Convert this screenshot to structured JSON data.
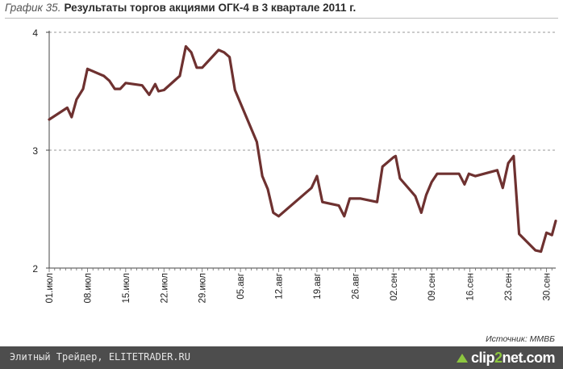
{
  "header": {
    "title_prefix": "График 35.",
    "title": "Результаты торгов акциями ОГК-4 в 3 квартале 2011 г."
  },
  "chart_data": {
    "type": "line",
    "title": "Результаты торгов акциями ОГК-4 в 3 квартале 2011 г.",
    "xlabel": "",
    "ylabel": "",
    "ylim": [
      2,
      4
    ],
    "yticks": [
      "2",
      "3",
      "4"
    ],
    "x_tick_labels": [
      "01.июл",
      "08.июл",
      "15.июл",
      "22.июл",
      "29.июл",
      "05.авг",
      "12.авг",
      "19.авг",
      "26.авг",
      "02.сен",
      "09.сен",
      "16.сен",
      "23.сен",
      "30.сен"
    ],
    "grid": "horizontal dashed",
    "line_color": "#6e3130",
    "series": [
      {
        "values": [
          [
            0.0,
            3.26
          ],
          [
            3.3,
            3.36
          ],
          [
            4.1,
            3.28
          ],
          [
            5.0,
            3.43
          ],
          [
            6.2,
            3.52
          ],
          [
            7.0,
            3.69
          ],
          [
            10.0,
            3.63
          ],
          [
            11.0,
            3.59
          ],
          [
            12.0,
            3.52
          ],
          [
            13.0,
            3.52
          ],
          [
            14.0,
            3.57
          ],
          [
            17.0,
            3.55
          ],
          [
            18.3,
            3.47
          ],
          [
            19.4,
            3.56
          ],
          [
            20.0,
            3.5
          ],
          [
            21.0,
            3.51
          ],
          [
            23.9,
            3.63
          ],
          [
            25.0,
            3.88
          ],
          [
            26.0,
            3.83
          ],
          [
            27.0,
            3.7
          ],
          [
            28.0,
            3.7
          ],
          [
            31.0,
            3.85
          ],
          [
            32.0,
            3.83
          ],
          [
            33.0,
            3.79
          ],
          [
            34.0,
            3.51
          ],
          [
            38.0,
            3.07
          ],
          [
            39.0,
            2.78
          ],
          [
            40.0,
            2.67
          ],
          [
            41.0,
            2.47
          ],
          [
            42.0,
            2.44
          ],
          [
            46.0,
            2.6
          ],
          [
            48.0,
            2.68
          ],
          [
            49.0,
            2.78
          ],
          [
            50.0,
            2.56
          ],
          [
            53.0,
            2.53
          ],
          [
            54.0,
            2.44
          ],
          [
            55.0,
            2.59
          ],
          [
            57.0,
            2.59
          ],
          [
            60.0,
            2.56
          ],
          [
            61.0,
            2.86
          ],
          [
            63.0,
            2.94
          ],
          [
            63.4,
            2.95
          ],
          [
            64.2,
            2.76
          ],
          [
            67.0,
            2.61
          ],
          [
            68.1,
            2.47
          ],
          [
            69.0,
            2.62
          ],
          [
            70.0,
            2.73
          ],
          [
            71.0,
            2.8
          ],
          [
            75.0,
            2.8
          ],
          [
            76.0,
            2.71
          ],
          [
            76.8,
            2.8
          ],
          [
            78.0,
            2.78
          ],
          [
            82.0,
            2.83
          ],
          [
            83.0,
            2.68
          ],
          [
            84.0,
            2.89
          ],
          [
            85.0,
            2.95
          ],
          [
            86.0,
            2.29
          ],
          [
            89.0,
            2.15
          ],
          [
            90.0,
            2.14
          ],
          [
            91.0,
            2.3
          ],
          [
            92.0,
            2.28
          ],
          [
            92.7,
            2.4
          ]
        ]
      }
    ]
  },
  "source": "Источник: ММВБ",
  "footer": {
    "text": "Элитный Трейдер, ELITETRADER.RU",
    "logo_a": "clip",
    "logo_b": "2",
    "logo_c": "net",
    "logo_d": ".com"
  }
}
